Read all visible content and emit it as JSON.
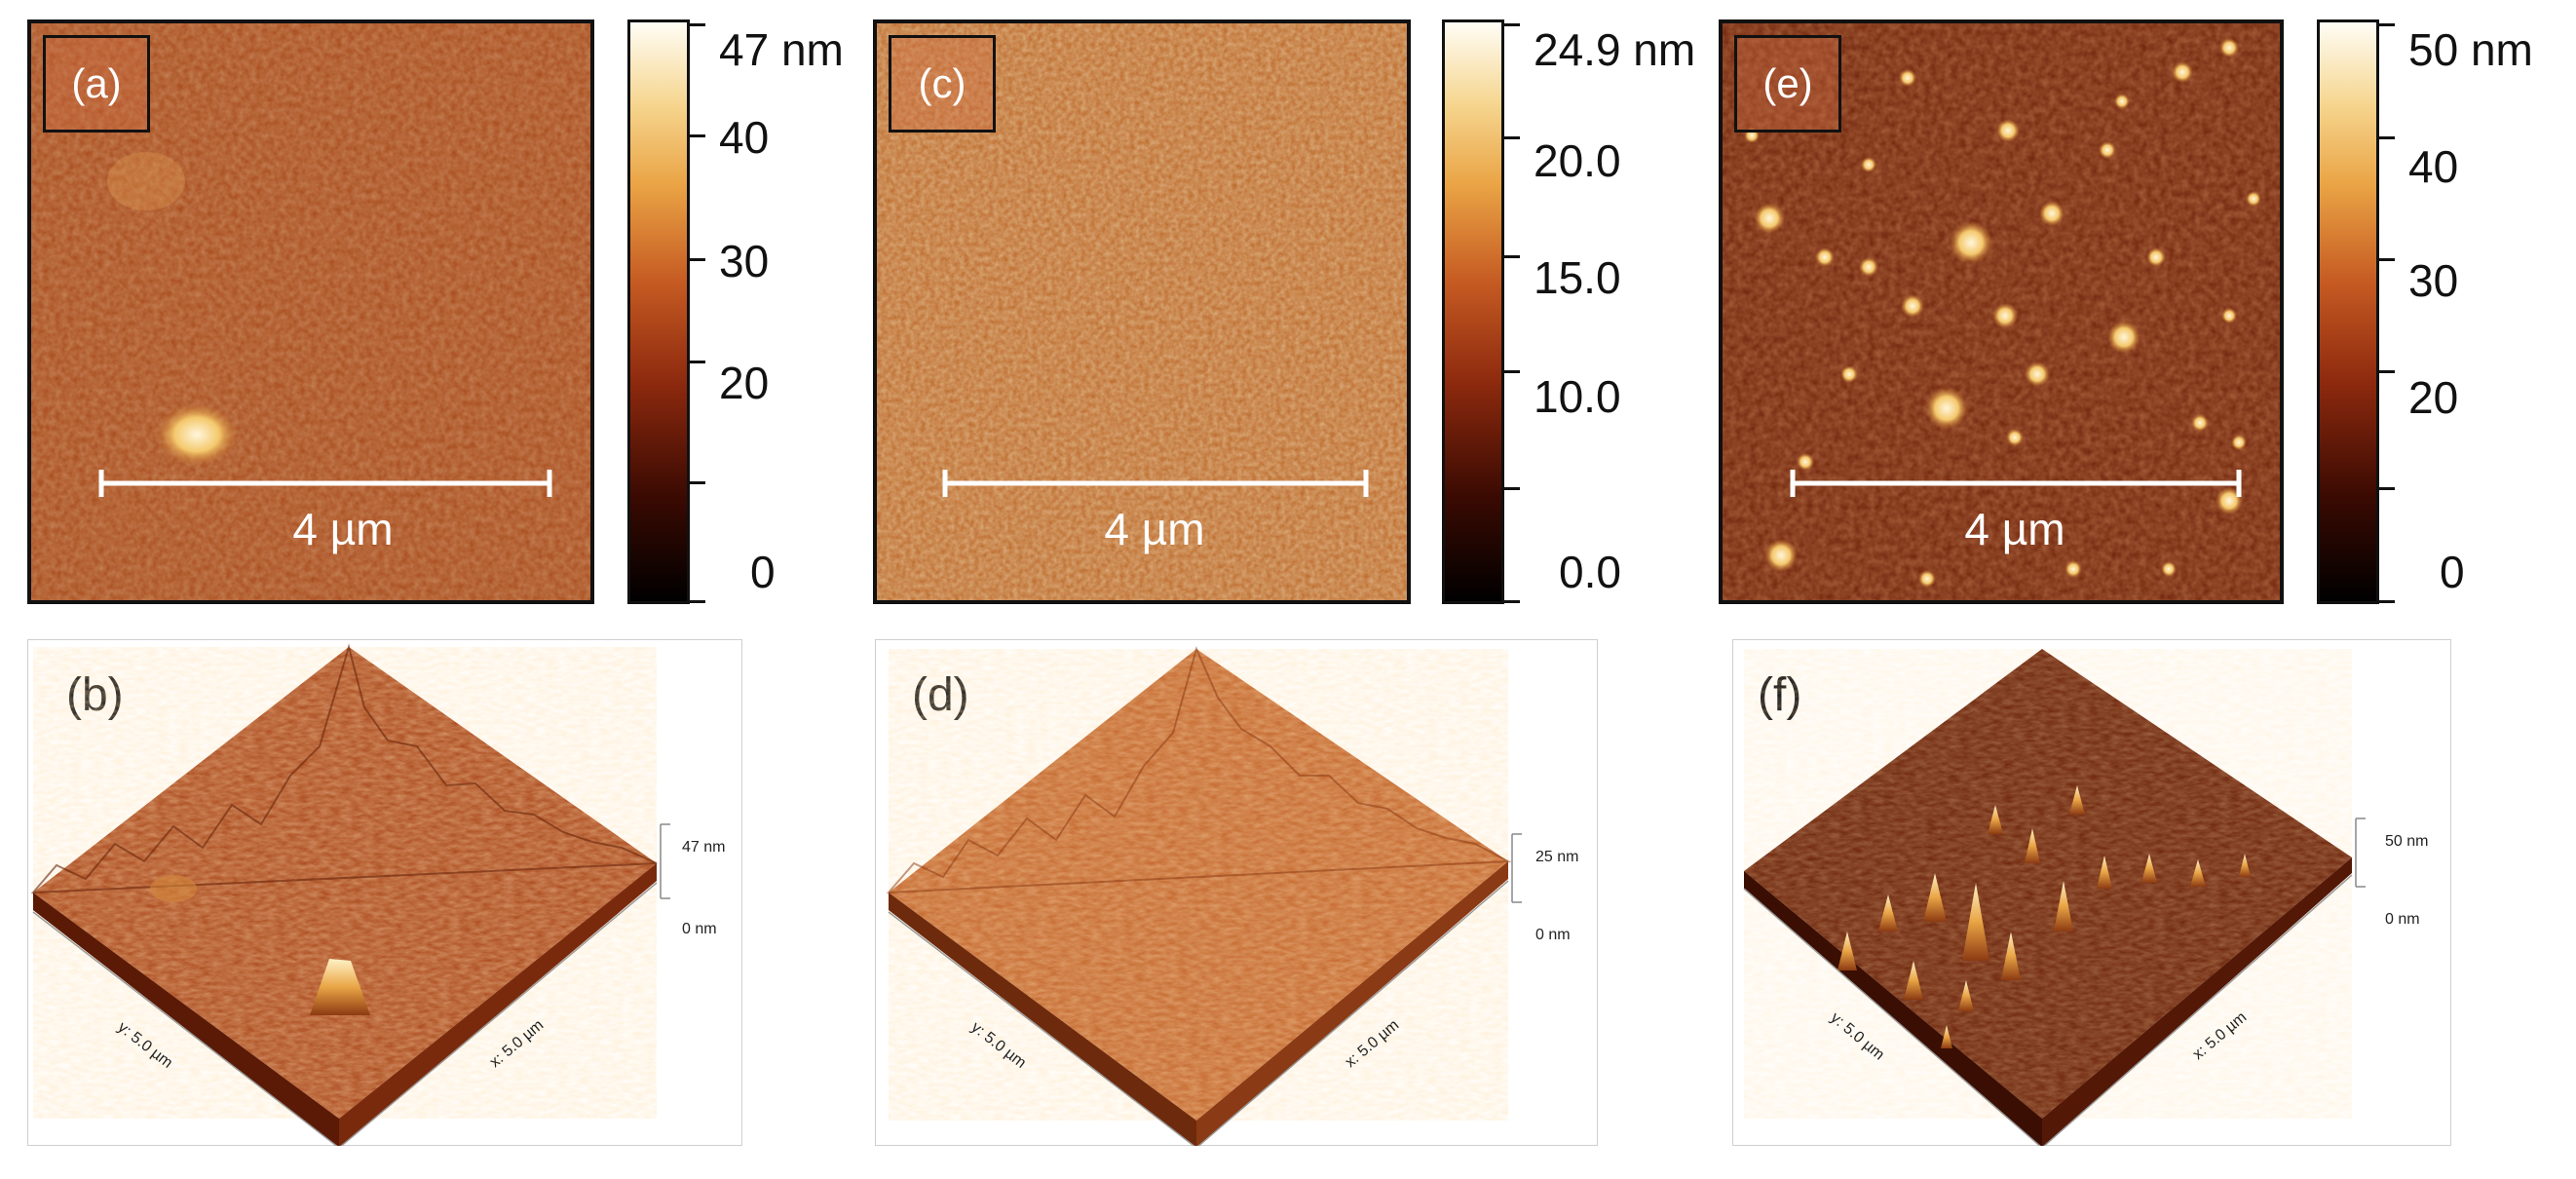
{
  "figure": {
    "panels_2d": [
      {
        "label": "(a)",
        "scale_bar_text": "4 µm",
        "colorbar": {
          "max_label": "47 nm",
          "ticks": [
            "40",
            "30",
            "20",
            "0"
          ]
        }
      },
      {
        "label": "(c)",
        "scale_bar_text": "4 µm",
        "colorbar": {
          "max_label": "24.9 nm",
          "ticks": [
            "20.0",
            "15.0",
            "10.0",
            "0.0"
          ]
        }
      },
      {
        "label": "(e)",
        "scale_bar_text": "4 µm",
        "colorbar": {
          "max_label": "50 nm",
          "ticks": [
            "40",
            "30",
            "20",
            "0"
          ]
        }
      }
    ],
    "panels_3d": [
      {
        "label": "(b)",
        "z_max": "47 nm",
        "z_min": "0 nm",
        "y_axis": "y: 5.0 µm",
        "x_axis": "x: 5.0 µm"
      },
      {
        "label": "(d)",
        "z_max": "25 nm",
        "z_min": "0 nm",
        "y_axis": "y: 5.0 µm",
        "x_axis": "x: 5.0 µm"
      },
      {
        "label": "(f)",
        "z_max": "50 nm",
        "z_min": "0 nm",
        "y_axis": "y: 5.0 µm",
        "x_axis": "x: 5.0 µm"
      }
    ]
  },
  "colors": {
    "colormap_dark": "#160400",
    "colormap_mid": "#b8401a",
    "colormap_bright": "#f0b24a",
    "colormap_white": "#fff8e6",
    "frame": "#111111"
  }
}
